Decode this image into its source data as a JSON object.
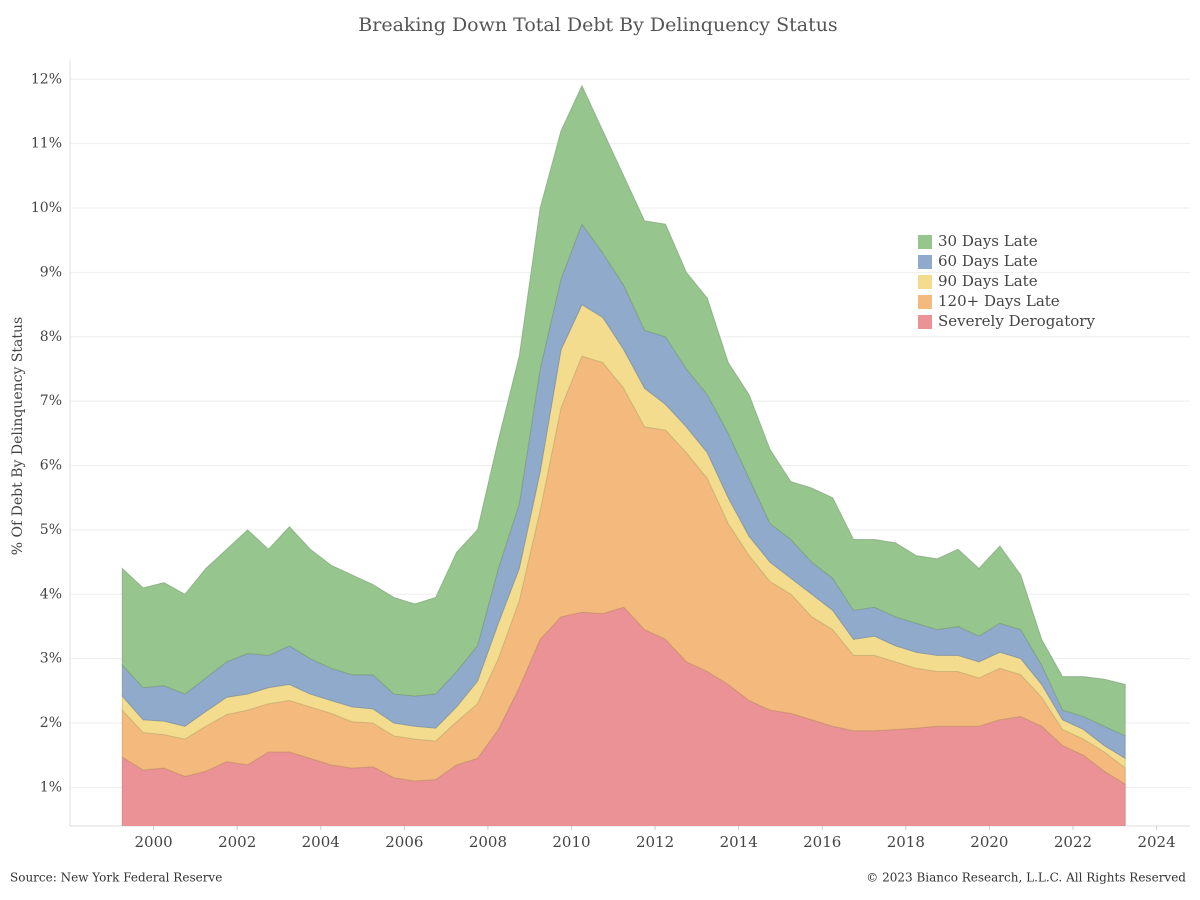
{
  "chart_data": {
    "type": "stacked_area",
    "title": "Breaking Down Total Debt By Delinquency Status",
    "y_label": "% Of Debt By Delinquency Status",
    "source": "Source: New York Federal Reserve",
    "copyright": "© 2023 Bianco Research, L.L.C. All Rights Reserved",
    "x": [
      1999.25,
      1999.75,
      2000.25,
      2000.75,
      2001.25,
      2001.75,
      2002.25,
      2002.75,
      2003.25,
      2003.75,
      2004.25,
      2004.75,
      2005.25,
      2005.75,
      2006.25,
      2006.75,
      2007.25,
      2007.75,
      2008.25,
      2008.75,
      2009.25,
      2009.75,
      2010.25,
      2010.75,
      2011.25,
      2011.75,
      2012.25,
      2012.75,
      2013.25,
      2013.75,
      2014.25,
      2014.75,
      2015.25,
      2015.75,
      2016.25,
      2016.75,
      2017.25,
      2017.75,
      2018.25,
      2018.75,
      2019.25,
      2019.75,
      2020.25,
      2020.75,
      2021.25,
      2021.75,
      2022.25,
      2022.75,
      2023.25
    ],
    "series": [
      {
        "name": "Severely Derogatory",
        "color": "#ea9296",
        "values": [
          1.47,
          1.27,
          1.3,
          1.17,
          1.25,
          1.4,
          1.35,
          1.55,
          1.55,
          1.45,
          1.35,
          1.3,
          1.32,
          1.15,
          1.1,
          1.12,
          1.35,
          1.45,
          1.9,
          2.55,
          3.3,
          3.65,
          3.72,
          3.7,
          3.8,
          3.45,
          3.3,
          2.95,
          2.8,
          2.6,
          2.35,
          2.2,
          2.15,
          2.05,
          1.95,
          1.88,
          1.88,
          1.9,
          1.92,
          1.95,
          1.95,
          1.95,
          2.05,
          2.1,
          1.95,
          1.65,
          1.5,
          1.25,
          1.05
        ]
      },
      {
        "name": "120+ Days Late",
        "color": "#f4b97d",
        "values": [
          0.73,
          0.58,
          0.52,
          0.58,
          0.7,
          0.73,
          0.85,
          0.75,
          0.8,
          0.8,
          0.8,
          0.72,
          0.68,
          0.65,
          0.65,
          0.6,
          0.67,
          0.85,
          1.1,
          1.35,
          2.0,
          3.25,
          3.98,
          3.9,
          3.4,
          3.15,
          3.25,
          3.25,
          3.0,
          2.5,
          2.25,
          2.0,
          1.85,
          1.6,
          1.5,
          1.17,
          1.17,
          1.05,
          0.93,
          0.85,
          0.85,
          0.75,
          0.8,
          0.65,
          0.45,
          0.25,
          0.25,
          0.3,
          0.25
        ]
      },
      {
        "name": "90 Days Late",
        "color": "#f3dc8e",
        "values": [
          0.22,
          0.2,
          0.21,
          0.2,
          0.23,
          0.27,
          0.25,
          0.25,
          0.25,
          0.2,
          0.2,
          0.23,
          0.22,
          0.2,
          0.2,
          0.2,
          0.23,
          0.35,
          0.55,
          0.5,
          0.6,
          0.9,
          0.8,
          0.7,
          0.6,
          0.6,
          0.4,
          0.4,
          0.4,
          0.4,
          0.3,
          0.3,
          0.25,
          0.35,
          0.3,
          0.25,
          0.3,
          0.25,
          0.25,
          0.25,
          0.25,
          0.25,
          0.25,
          0.25,
          0.2,
          0.15,
          0.15,
          0.1,
          0.15
        ]
      },
      {
        "name": "60 Days Late",
        "color": "#90aacb",
        "values": [
          0.48,
          0.5,
          0.55,
          0.5,
          0.52,
          0.55,
          0.63,
          0.5,
          0.6,
          0.55,
          0.5,
          0.5,
          0.53,
          0.45,
          0.47,
          0.53,
          0.55,
          0.55,
          0.85,
          1.0,
          1.6,
          1.1,
          1.25,
          1.0,
          1.0,
          0.9,
          1.05,
          0.9,
          0.9,
          1.0,
          0.9,
          0.6,
          0.6,
          0.5,
          0.5,
          0.45,
          0.45,
          0.45,
          0.45,
          0.4,
          0.45,
          0.4,
          0.45,
          0.45,
          0.3,
          0.15,
          0.2,
          0.3,
          0.35
        ]
      },
      {
        "name": "30 Days Late",
        "color": "#96c58e",
        "values": [
          1.5,
          1.55,
          1.6,
          1.55,
          1.7,
          1.75,
          1.92,
          1.65,
          1.85,
          1.7,
          1.6,
          1.55,
          1.4,
          1.5,
          1.43,
          1.5,
          1.85,
          1.8,
          2.0,
          2.3,
          2.5,
          2.3,
          2.15,
          1.9,
          1.7,
          1.7,
          1.75,
          1.5,
          1.5,
          1.1,
          1.3,
          1.15,
          0.9,
          1.15,
          1.25,
          1.1,
          1.05,
          1.15,
          1.05,
          1.1,
          1.2,
          1.05,
          1.2,
          0.85,
          0.4,
          0.52,
          0.62,
          0.73,
          0.8
        ]
      }
    ],
    "xlim": [
      1998,
      2024.8
    ],
    "xticks": [
      2000,
      2002,
      2004,
      2006,
      2008,
      2010,
      2012,
      2014,
      2016,
      2018,
      2020,
      2022,
      2024
    ],
    "ylim": [
      0.4,
      12.3
    ],
    "yticks": [
      {
        "value": 1,
        "label": "1%"
      },
      {
        "value": 2,
        "label": "2%"
      },
      {
        "value": 3,
        "label": "3%"
      },
      {
        "value": 4,
        "label": "4%"
      },
      {
        "value": 5,
        "label": "5%"
      },
      {
        "value": 6,
        "label": "6%"
      },
      {
        "value": 7,
        "label": "7%"
      },
      {
        "value": 8,
        "label": "8%"
      },
      {
        "value": 9,
        "label": "9%"
      },
      {
        "value": 10,
        "label": "10%"
      },
      {
        "value": 11,
        "label": "11%"
      },
      {
        "value": 12,
        "label": "12%"
      }
    ],
    "grid": true,
    "legend_position": "upper-right"
  }
}
